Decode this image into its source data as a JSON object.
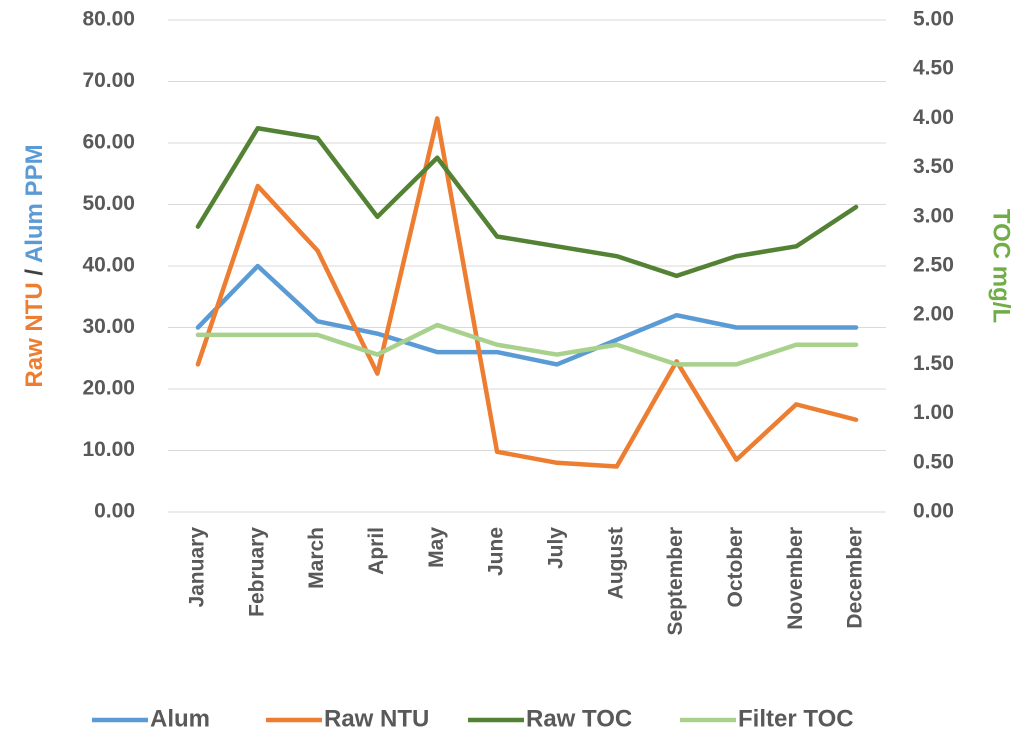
{
  "chart_data": {
    "type": "line",
    "categories": [
      "January",
      "February",
      "March",
      "April",
      "May",
      "June",
      "July",
      "August",
      "September",
      "October",
      "November",
      "December"
    ],
    "ylabel": [
      "Raw NTU",
      "/",
      "Alum PPM"
    ],
    "y2label": "TOC mg/L",
    "ylim": [
      0,
      80
    ],
    "yticks": [
      {
        "value": 0,
        "label": "0.00"
      },
      {
        "value": 10,
        "label": "10.00"
      },
      {
        "value": 20,
        "label": "20.00"
      },
      {
        "value": 30,
        "label": "30.00"
      },
      {
        "value": 40,
        "label": "40.00"
      },
      {
        "value": 50,
        "label": "50.00"
      },
      {
        "value": 60,
        "label": "60.00"
      },
      {
        "value": 70,
        "label": "70.00"
      },
      {
        "value": 80,
        "label": "80.00"
      }
    ],
    "y2lim": [
      0,
      5
    ],
    "y2ticks": [
      {
        "value": 0,
        "label": "0.00"
      },
      {
        "value": 0.5,
        "label": "0.50"
      },
      {
        "value": 1,
        "label": "1.00"
      },
      {
        "value": 1.5,
        "label": "1.50"
      },
      {
        "value": 2,
        "label": "2.00"
      },
      {
        "value": 2.5,
        "label": "2.50"
      },
      {
        "value": 3,
        "label": "3.00"
      },
      {
        "value": 3.5,
        "label": "3.50"
      },
      {
        "value": 4,
        "label": "4.00"
      },
      {
        "value": 4.5,
        "label": "4.50"
      },
      {
        "value": 5,
        "label": "5.00"
      }
    ],
    "grid": true,
    "legend": "bottom",
    "series": [
      {
        "name": "Alum",
        "color": "#5b9bd5",
        "values": [
          30,
          40,
          31,
          29,
          26,
          26,
          24,
          28,
          32,
          30,
          30,
          30
        ]
      },
      {
        "name": "Raw NTU",
        "color": "#ed7d31",
        "values": [
          24,
          53,
          42.5,
          22.5,
          64,
          9.8,
          8,
          7.4,
          24.5,
          8.5,
          17.5,
          15
        ]
      },
      {
        "name": "Raw TOC",
        "color": "#548235",
        "axis": "y2",
        "values": [
          2.9,
          3.9,
          3.8,
          3.0,
          3.6,
          2.8,
          2.7,
          2.6,
          2.4,
          2.6,
          2.7,
          3.1
        ]
      },
      {
        "name": "Filter TOC",
        "color": "#a9d18e",
        "axis": "y2",
        "values": [
          1.8,
          1.8,
          1.8,
          1.6,
          1.9,
          1.7,
          1.6,
          1.7,
          1.5,
          1.5,
          1.7,
          1.7
        ]
      }
    ]
  }
}
